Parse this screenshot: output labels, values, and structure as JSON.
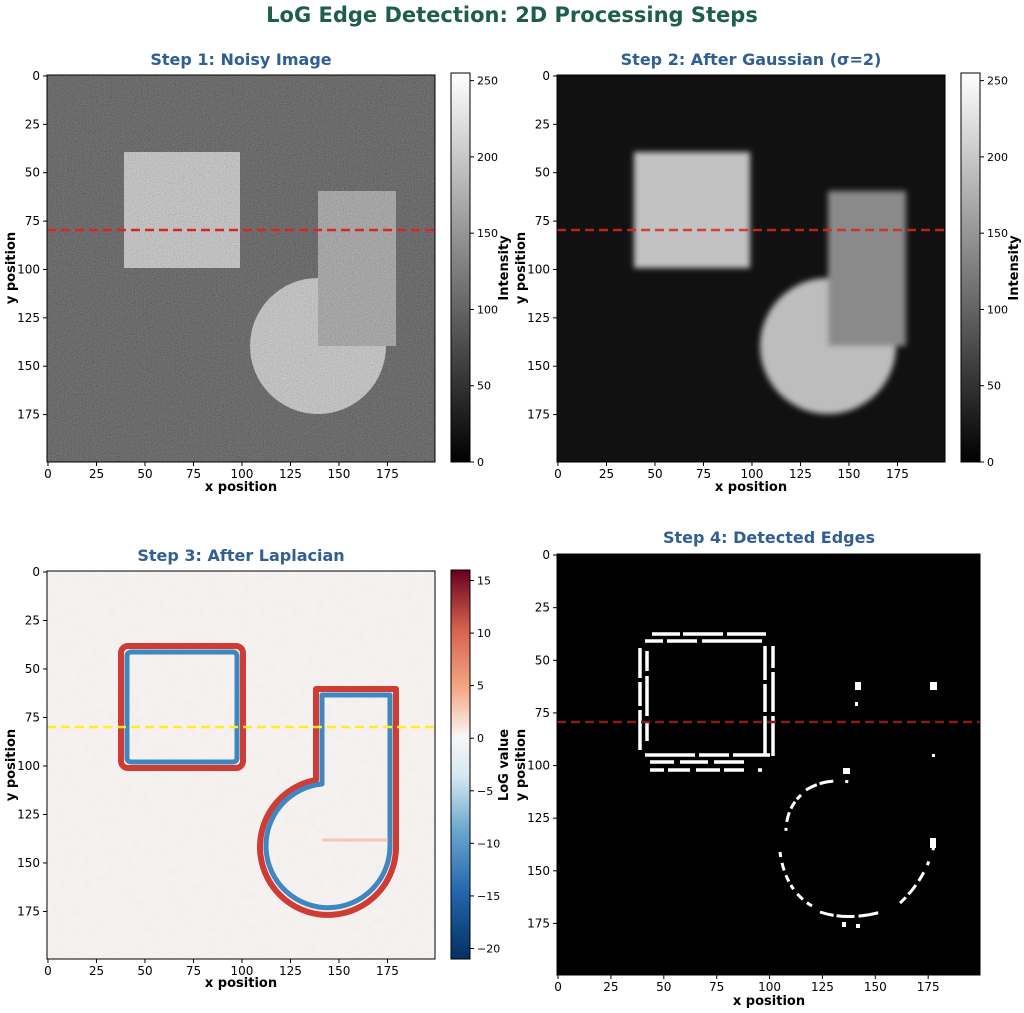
{
  "suptitle": "LoG Edge Detection: 2D Processing Steps",
  "colors": {
    "suptitle": "#1d5e4e",
    "panel_title": "#2f5f94",
    "profile_line_red": "#d62728",
    "profile_line_yellow": "#ffee22",
    "edges": "#ffffff",
    "background": "#000000"
  },
  "chart_data": [
    {
      "type": "heatmap",
      "title": "Step 1: Noisy Image",
      "xlabel": "x position",
      "ylabel": "y position",
      "xlim": [
        0,
        199
      ],
      "ylim": [
        199,
        0
      ],
      "xticks": [
        "0",
        "25",
        "50",
        "75",
        "100",
        "125",
        "150",
        "175"
      ],
      "yticks": [
        "0",
        "25",
        "50",
        "75",
        "100",
        "125",
        "150",
        "175"
      ],
      "colormap": "gray",
      "colorbar": {
        "label": "Intensity",
        "range": [
          0,
          255
        ],
        "ticks": [
          "0",
          "50",
          "100",
          "150",
          "200",
          "250"
        ]
      },
      "profile_line_y": 80,
      "shapes": [
        {
          "kind": "square",
          "x_range": [
            40,
            100
          ],
          "y_range": [
            40,
            100
          ],
          "intensity": 200
        },
        {
          "kind": "circle",
          "center": [
            140,
            140
          ],
          "radius": 35,
          "intensity": 200
        },
        {
          "kind": "rectangle",
          "x_range": [
            140,
            180
          ],
          "y_range": [
            60,
            140
          ],
          "intensity": 130
        }
      ],
      "noise": true
    },
    {
      "type": "heatmap",
      "title": "Step 2: After Gaussian (σ=2)",
      "xlabel": "x position",
      "ylabel": "y position",
      "xlim": [
        0,
        199
      ],
      "ylim": [
        199,
        0
      ],
      "xticks": [
        "0",
        "25",
        "50",
        "75",
        "100",
        "125",
        "150",
        "175"
      ],
      "yticks": [
        "0",
        "25",
        "50",
        "75",
        "100",
        "125",
        "150",
        "175"
      ],
      "colormap": "gray",
      "colorbar": {
        "label": "Intensity",
        "range": [
          0,
          255
        ],
        "ticks": [
          "0",
          "50",
          "100",
          "150",
          "200",
          "250"
        ]
      },
      "profile_line_y": 80,
      "sigma": 2
    },
    {
      "type": "heatmap",
      "title": "Step 3: After Laplacian",
      "xlabel": "x position",
      "ylabel": "y position",
      "xlim": [
        0,
        199
      ],
      "ylim": [
        199,
        0
      ],
      "xticks": [
        "0",
        "25",
        "50",
        "75",
        "100",
        "125",
        "150",
        "175"
      ],
      "yticks": [
        "0",
        "25",
        "50",
        "75",
        "100",
        "125",
        "150",
        "175"
      ],
      "colormap": "RdBu_r",
      "colorbar": {
        "label": "LoG value",
        "range": [
          -21,
          16
        ],
        "ticks": [
          "15",
          "10",
          "5",
          "0",
          "−5",
          "−10",
          "−15",
          "−20"
        ]
      },
      "profile_line_y": 80
    },
    {
      "type": "heatmap",
      "title": "Step 4: Detected Edges",
      "xlabel": "x position",
      "ylabel": "y position",
      "xlim": [
        0,
        199
      ],
      "ylim": [
        199,
        0
      ],
      "xticks": [
        "0",
        "25",
        "50",
        "75",
        "100",
        "125",
        "150",
        "175"
      ],
      "yticks": [
        "0",
        "25",
        "50",
        "75",
        "100",
        "125",
        "150",
        "175"
      ],
      "colormap": "binary",
      "profile_line_y": 80
    }
  ]
}
